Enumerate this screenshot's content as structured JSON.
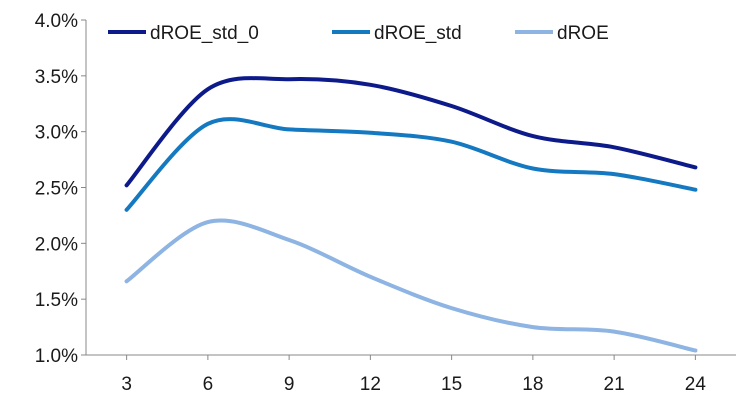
{
  "chart_data": {
    "type": "line",
    "title": "",
    "xlabel": "",
    "ylabel": "",
    "x": [
      3,
      6,
      9,
      12,
      15,
      18,
      21,
      24
    ],
    "x_tick_labels": [
      "3",
      "6",
      "9",
      "12",
      "15",
      "18",
      "21",
      "24"
    ],
    "ylim": [
      0.01,
      0.04
    ],
    "y_ticks": [
      0.01,
      0.015,
      0.02,
      0.025,
      0.03,
      0.035,
      0.04
    ],
    "y_tick_labels": [
      "1.0%",
      "1.5%",
      "2.0%",
      "2.5%",
      "3.0%",
      "3.5%",
      "4.0%"
    ],
    "grid": false,
    "legend_position": "top",
    "series": [
      {
        "name": "dROE_std_0",
        "color": "#0d1a8a",
        "values": [
          0.0252,
          0.0338,
          0.0347,
          0.0342,
          0.0323,
          0.0296,
          0.0286,
          0.0268
        ]
      },
      {
        "name": "dROE_std",
        "color": "#1479c0",
        "values": [
          0.023,
          0.0307,
          0.0302,
          0.0299,
          0.0291,
          0.0267,
          0.0262,
          0.0248
        ]
      },
      {
        "name": "dROE",
        "color": "#8db4e2",
        "values": [
          0.0166,
          0.0219,
          0.0203,
          0.017,
          0.0142,
          0.0125,
          0.0121,
          0.0104
        ]
      }
    ]
  }
}
